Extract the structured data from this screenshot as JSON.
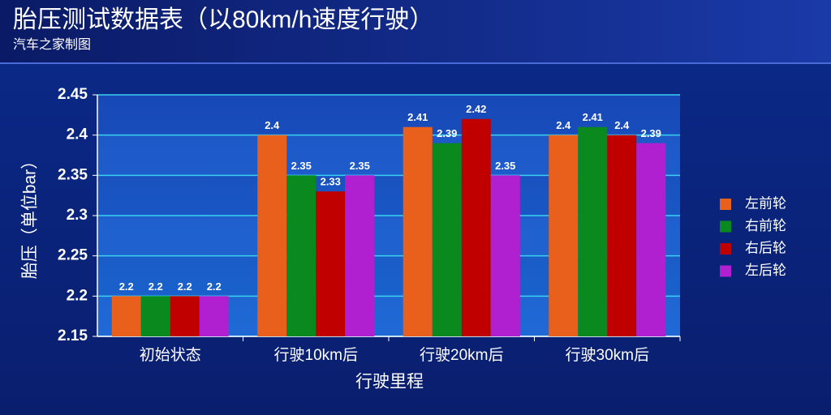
{
  "chart_data": {
    "type": "bar",
    "title": "胎压测试数据表（以80km/h速度行驶）",
    "subtitle": "汽车之家制图",
    "x_label": "行驶里程",
    "y_label": "胎压（单位bar）",
    "categories": [
      "初始状态",
      "行驶10km后",
      "行驶20km后",
      "行驶30km后"
    ],
    "series": [
      {
        "name": "左前轮",
        "color": "#e8601c",
        "values": [
          2.2,
          2.4,
          2.41,
          2.4
        ]
      },
      {
        "name": "右前轮",
        "color": "#0a8a1e",
        "values": [
          2.2,
          2.35,
          2.39,
          2.41
        ]
      },
      {
        "name": "右后轮",
        "color": "#c00000",
        "values": [
          2.2,
          2.33,
          2.42,
          2.4
        ]
      },
      {
        "name": "左后轮",
        "color": "#b020d0",
        "values": [
          2.2,
          2.35,
          2.35,
          2.39
        ]
      }
    ],
    "ylim": [
      2.15,
      2.45
    ],
    "yticks": [
      2.15,
      2.2,
      2.25,
      2.3,
      2.35,
      2.4,
      2.45
    ],
    "grid": true,
    "legend": "right"
  }
}
